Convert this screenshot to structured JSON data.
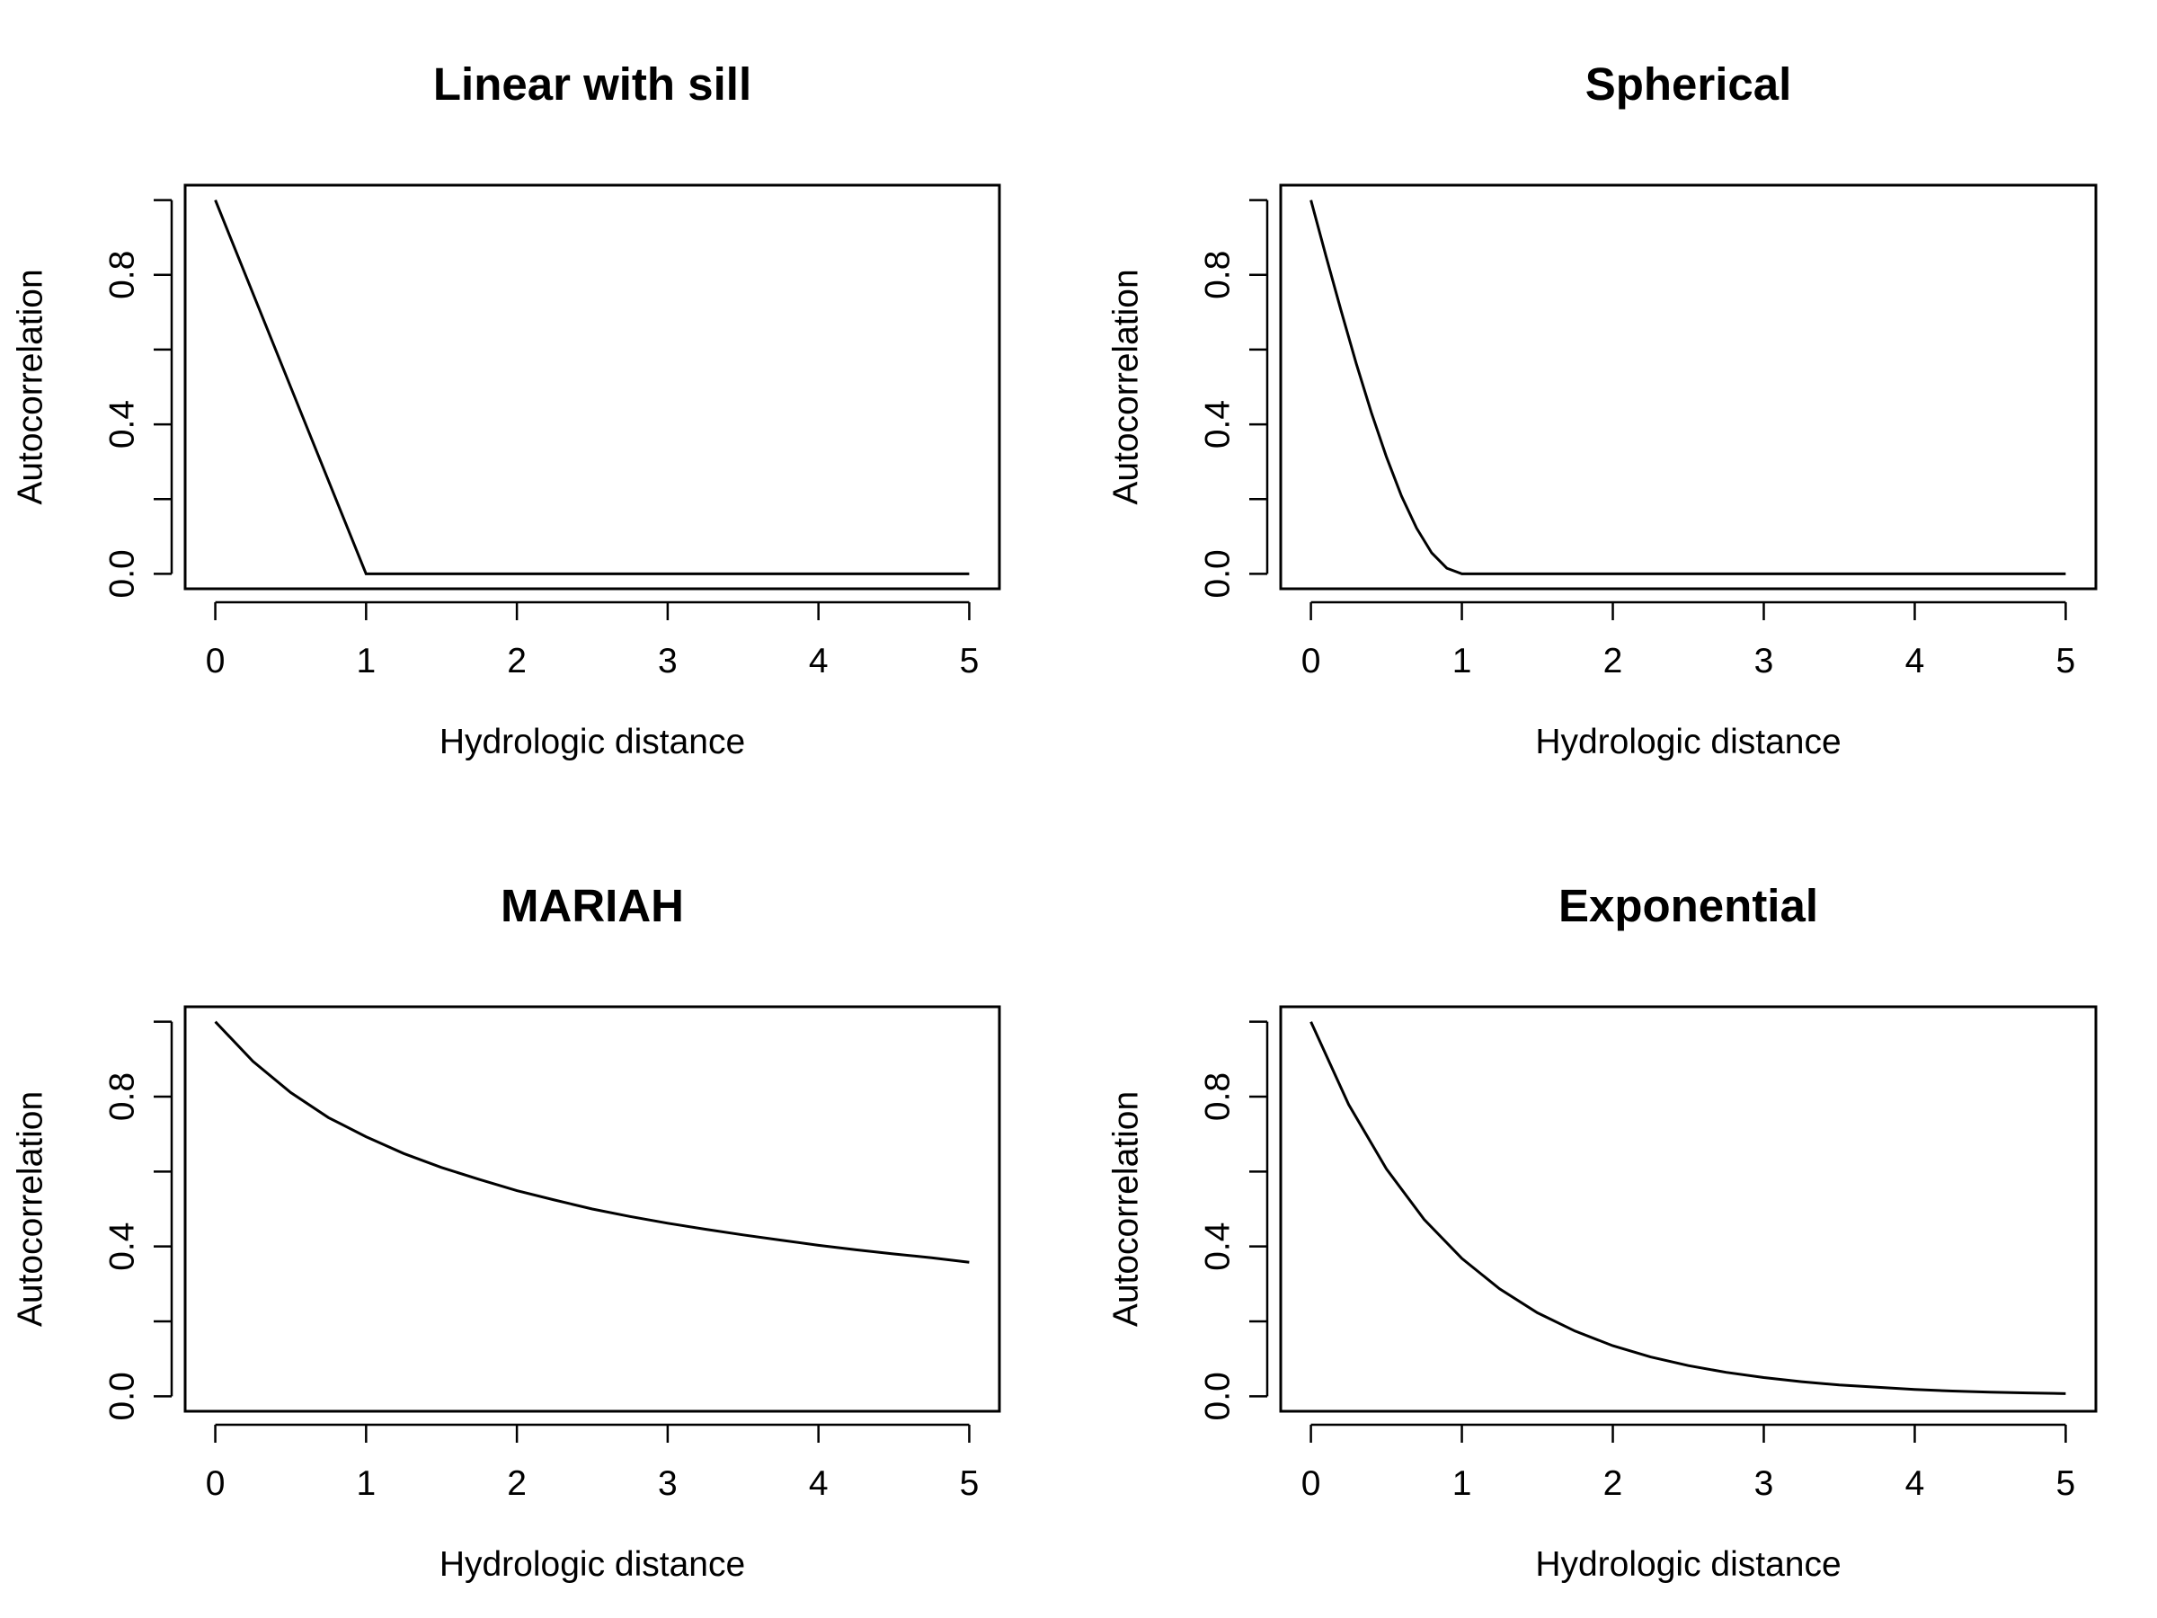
{
  "chart_data": [
    {
      "type": "line",
      "title": "Linear with sill",
      "xlabel": "Hydrologic distance",
      "ylabel": "Autocorrelation",
      "xlim": [
        0,
        5
      ],
      "ylim": [
        0,
        1
      ],
      "xticks": [
        "0",
        "1",
        "2",
        "3",
        "4",
        "5"
      ],
      "yticks": [
        "0.0",
        "0.4",
        "0.8"
      ],
      "grid": false,
      "series": [
        {
          "x": [
            0,
            0.5,
            1,
            1.5,
            2,
            2.5,
            3,
            3.5,
            4,
            4.5,
            5
          ],
          "y": [
            1,
            0.5,
            0,
            0,
            0,
            0,
            0,
            0,
            0,
            0,
            0
          ]
        }
      ]
    },
    {
      "type": "line",
      "title": "Spherical",
      "xlabel": "Hydrologic distance",
      "ylabel": "Autocorrelation",
      "xlim": [
        0,
        5
      ],
      "ylim": [
        0,
        1
      ],
      "xticks": [
        "0",
        "1",
        "2",
        "3",
        "4",
        "5"
      ],
      "yticks": [
        "0.0",
        "0.4",
        "0.8"
      ],
      "grid": false,
      "series": [
        {
          "x": [
            0,
            0.1,
            0.2,
            0.3,
            0.4,
            0.5,
            0.6,
            0.7,
            0.8,
            0.9,
            1,
            1.5,
            2,
            2.5,
            3,
            3.5,
            4,
            4.5,
            5
          ],
          "y": [
            1,
            0.85,
            0.704,
            0.563,
            0.432,
            0.313,
            0.208,
            0.122,
            0.056,
            0.015,
            0,
            0,
            0,
            0,
            0,
            0,
            0,
            0,
            0
          ]
        }
      ]
    },
    {
      "type": "line",
      "title": "MARIAH",
      "xlabel": "Hydrologic distance",
      "ylabel": "Autocorrelation",
      "xlim": [
        0,
        5
      ],
      "ylim": [
        0,
        1
      ],
      "xticks": [
        "0",
        "1",
        "2",
        "3",
        "4",
        "5"
      ],
      "yticks": [
        "0.0",
        "0.4",
        "0.8"
      ],
      "grid": false,
      "series": [
        {
          "x": [
            0,
            0.25,
            0.5,
            0.75,
            1,
            1.25,
            1.5,
            1.75,
            2,
            2.25,
            2.5,
            2.75,
            3,
            3.25,
            3.5,
            3.75,
            4,
            4.25,
            4.5,
            4.75,
            5
          ],
          "y": [
            1,
            0.894,
            0.811,
            0.744,
            0.693,
            0.648,
            0.611,
            0.579,
            0.549,
            0.524,
            0.5,
            0.48,
            0.462,
            0.446,
            0.431,
            0.417,
            0.403,
            0.391,
            0.38,
            0.37,
            0.358
          ]
        }
      ]
    },
    {
      "type": "line",
      "title": "Exponential",
      "xlabel": "Hydrologic distance",
      "ylabel": "Autocorrelation",
      "xlim": [
        0,
        5
      ],
      "ylim": [
        0,
        1
      ],
      "xticks": [
        "0",
        "1",
        "2",
        "3",
        "4",
        "5"
      ],
      "yticks": [
        "0.0",
        "0.4",
        "0.8"
      ],
      "grid": false,
      "series": [
        {
          "x": [
            0,
            0.25,
            0.5,
            0.75,
            1,
            1.25,
            1.5,
            1.75,
            2,
            2.25,
            2.5,
            2.75,
            3,
            3.25,
            3.5,
            3.75,
            4,
            4.25,
            4.5,
            4.75,
            5
          ],
          "y": [
            1,
            0.779,
            0.607,
            0.472,
            0.368,
            0.287,
            0.223,
            0.174,
            0.135,
            0.105,
            0.082,
            0.064,
            0.05,
            0.039,
            0.03,
            0.024,
            0.018,
            0.014,
            0.011,
            0.009,
            0.007
          ]
        }
      ]
    }
  ]
}
